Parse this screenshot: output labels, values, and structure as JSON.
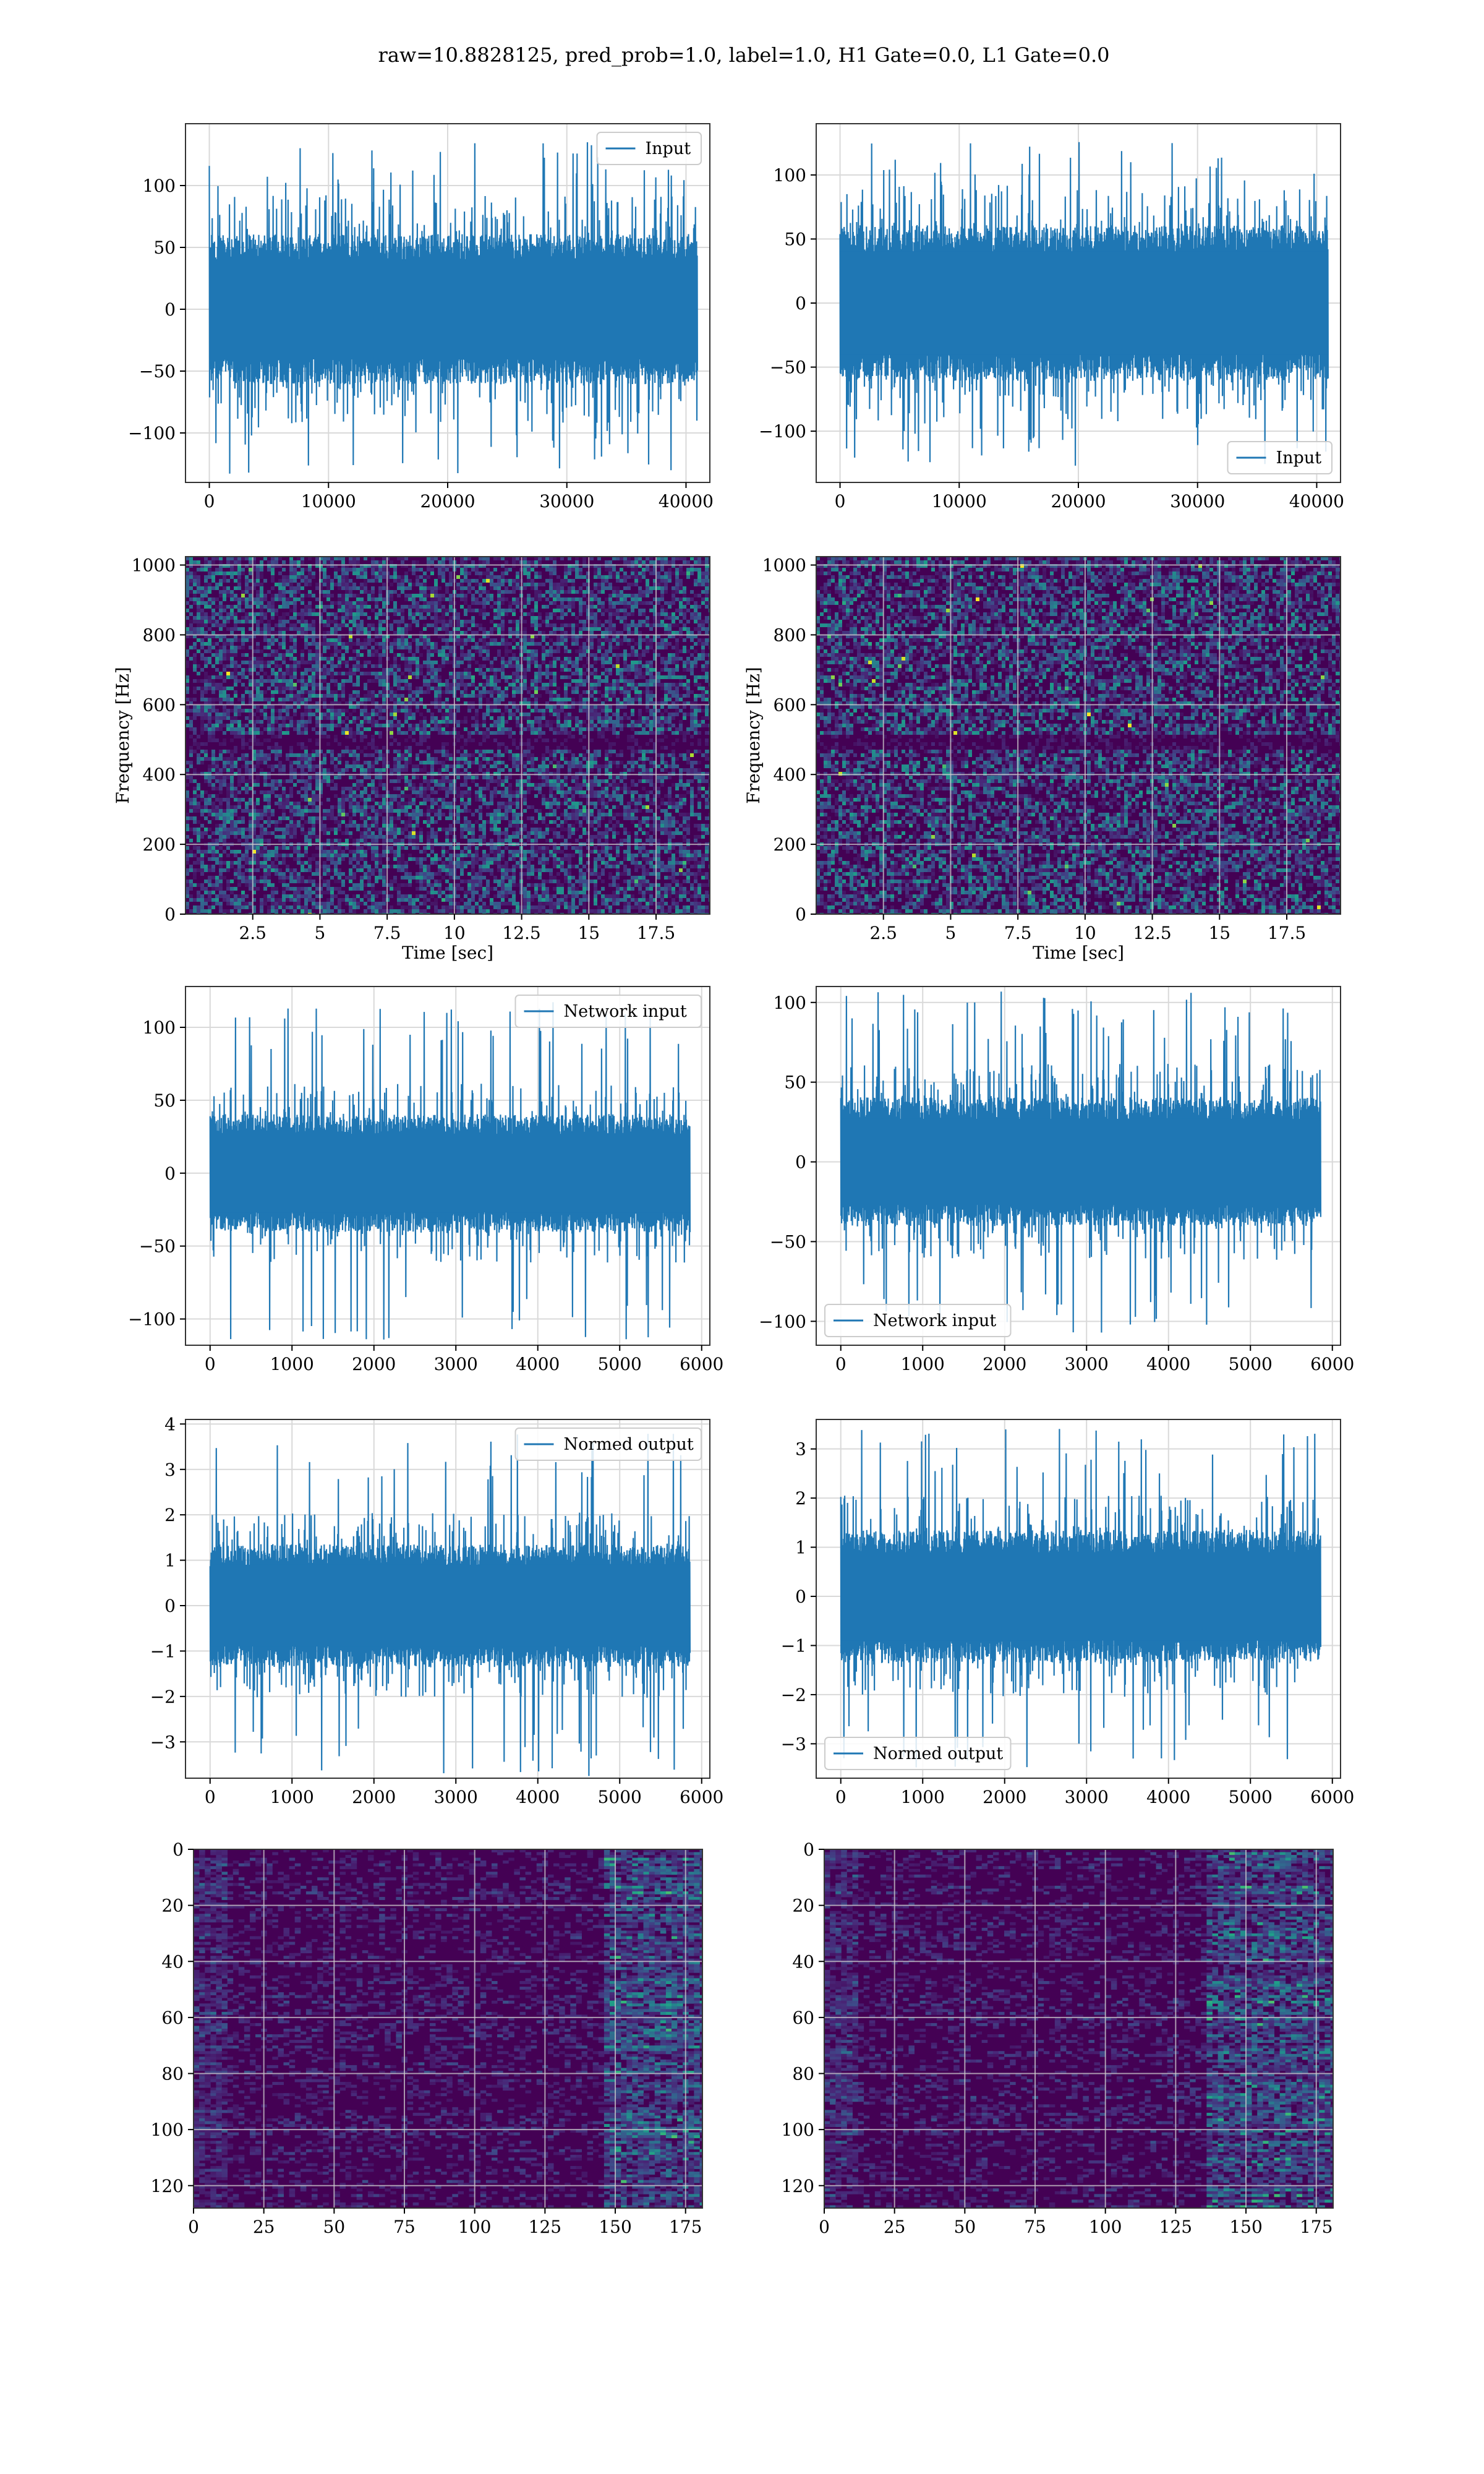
{
  "title": "raw=10.8828125, pred_prob=1.0, label=1.0, H1 Gate=0.0, L1 Gate=0.0",
  "colors": {
    "line": "#1f77b4",
    "viridis_dark": "#440154",
    "grid": "#d9d9d9"
  },
  "chart_data": [
    {
      "id": "input_h1",
      "type": "line",
      "legend": "Input",
      "legend_loc": "upper right",
      "xlim": [
        -2000,
        42000
      ],
      "ylim": [
        -140,
        150
      ],
      "xticks": [
        0,
        10000,
        20000,
        30000,
        40000
      ],
      "yticks": [
        -100,
        -50,
        0,
        50,
        100
      ],
      "n_points": 40960,
      "amplitude_core": 45,
      "amplitude_peak": 135,
      "grid": true
    },
    {
      "id": "input_l1",
      "type": "line",
      "legend": "Input",
      "legend_loc": "lower right",
      "xlim": [
        -2000,
        42000
      ],
      "ylim": [
        -140,
        140
      ],
      "xticks": [
        0,
        10000,
        20000,
        30000,
        40000
      ],
      "yticks": [
        -100,
        -50,
        0,
        50,
        100
      ],
      "n_points": 40960,
      "amplitude_core": 45,
      "amplitude_peak": 128,
      "grid": true
    },
    {
      "id": "spec_h1",
      "type": "heatmap",
      "colormap": "viridis",
      "xlabel": "Time [sec]",
      "ylabel": "Frequency [Hz]",
      "xlim": [
        0,
        19.5
      ],
      "ylim": [
        0,
        1024
      ],
      "xticks": [
        2.5,
        5.0,
        7.5,
        10.0,
        12.5,
        15.0,
        17.5
      ],
      "yticks": [
        0,
        200,
        400,
        600,
        800,
        1000
      ],
      "dark_band_hz": 500,
      "grid": true
    },
    {
      "id": "spec_l1",
      "type": "heatmap",
      "colormap": "viridis",
      "xlabel": "Time [sec]",
      "ylabel": "Frequency [Hz]",
      "xlim": [
        0,
        19.5
      ],
      "ylim": [
        0,
        1024
      ],
      "xticks": [
        2.5,
        5.0,
        7.5,
        10.0,
        12.5,
        15.0,
        17.5
      ],
      "yticks": [
        0,
        200,
        400,
        600,
        800,
        1000
      ],
      "dark_band_hz": 500,
      "grid": true
    },
    {
      "id": "net_h1",
      "type": "line",
      "legend": "Network input",
      "legend_loc": "upper right",
      "xlim": [
        -300,
        6100
      ],
      "ylim": [
        -118,
        128
      ],
      "xticks": [
        0,
        1000,
        2000,
        3000,
        4000,
        5000,
        6000
      ],
      "yticks": [
        -100,
        -50,
        0,
        50,
        100
      ],
      "n_points": 5859,
      "amplitude_core": 30,
      "amplitude_peak": 118,
      "grid": true
    },
    {
      "id": "net_l1",
      "type": "line",
      "legend": "Network input",
      "legend_loc": "lower left",
      "xlim": [
        -300,
        6100
      ],
      "ylim": [
        -115,
        110
      ],
      "xticks": [
        0,
        1000,
        2000,
        3000,
        4000,
        5000,
        6000
      ],
      "yticks": [
        -100,
        -50,
        0,
        50,
        100
      ],
      "n_points": 5859,
      "amplitude_core": 30,
      "amplitude_peak": 108,
      "grid": true
    },
    {
      "id": "norm_h1",
      "type": "line",
      "legend": "Normed output",
      "legend_loc": "upper right",
      "xlim": [
        -300,
        6100
      ],
      "ylim": [
        -3.8,
        4.1
      ],
      "xticks": [
        0,
        1000,
        2000,
        3000,
        4000,
        5000,
        6000
      ],
      "yticks": [
        -3,
        -2,
        -1,
        0,
        1,
        2,
        3,
        4
      ],
      "n_points": 5859,
      "amplitude_core": 1.0,
      "amplitude_peak": 3.8,
      "grid": true
    },
    {
      "id": "norm_l1",
      "type": "line",
      "legend": "Normed output",
      "legend_loc": "lower left",
      "xlim": [
        -300,
        6100
      ],
      "ylim": [
        -3.7,
        3.6
      ],
      "xticks": [
        0,
        1000,
        2000,
        3000,
        4000,
        5000,
        6000
      ],
      "yticks": [
        -3,
        -2,
        -1,
        0,
        1,
        2,
        3
      ],
      "n_points": 5859,
      "amplitude_core": 1.0,
      "amplitude_peak": 3.5,
      "grid": true
    },
    {
      "id": "feat_h1",
      "type": "heatmap",
      "colormap": "viridis",
      "xlim": [
        0,
        181
      ],
      "ylim": [
        128,
        0
      ],
      "xticks": [
        0,
        25,
        50,
        75,
        100,
        125,
        150,
        175
      ],
      "yticks": [
        0,
        20,
        40,
        60,
        80,
        100,
        120
      ],
      "bright_region_x": [
        145,
        181
      ],
      "grid": true
    },
    {
      "id": "feat_l1",
      "type": "heatmap",
      "colormap": "viridis",
      "xlim": [
        0,
        181
      ],
      "ylim": [
        128,
        0
      ],
      "xticks": [
        0,
        25,
        50,
        75,
        100,
        125,
        150,
        175
      ],
      "yticks": [
        0,
        20,
        40,
        60,
        80,
        100,
        120
      ],
      "bright_region_x": [
        135,
        181
      ],
      "grid": true
    }
  ]
}
